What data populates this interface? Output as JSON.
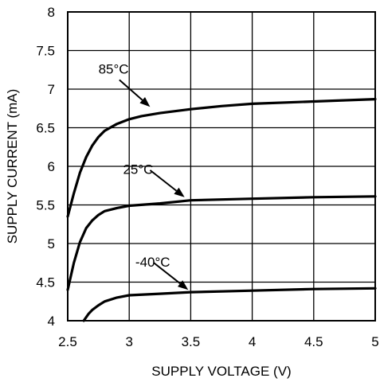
{
  "chart_data": {
    "type": "line",
    "title": "",
    "xlabel": "SUPPLY VOLTAGE (V)",
    "ylabel": "SUPPLY CURRENT (mA)",
    "xlim": [
      2.5,
      5
    ],
    "ylim": [
      4,
      8
    ],
    "xticks": [
      2.5,
      3,
      3.5,
      4,
      4.5,
      5
    ],
    "yticks": [
      4,
      4.5,
      5,
      5.5,
      6,
      6.5,
      7,
      7.5,
      8
    ],
    "xtick_labels": [
      "2.5",
      "3",
      "3.5",
      "4",
      "4.5",
      "5"
    ],
    "ytick_labels": [
      "4",
      "4.5",
      "5",
      "5.5",
      "6",
      "6.5",
      "7",
      "7.5",
      "8"
    ],
    "grid": true,
    "series": [
      {
        "name": "85°C",
        "x": [
          2.5,
          2.55,
          2.6,
          2.65,
          2.7,
          2.75,
          2.8,
          2.9,
          3.0,
          3.1,
          3.25,
          3.5,
          3.75,
          4.0,
          4.5,
          5.0
        ],
        "y": [
          5.35,
          5.65,
          5.92,
          6.12,
          6.27,
          6.38,
          6.46,
          6.55,
          6.61,
          6.65,
          6.69,
          6.74,
          6.78,
          6.81,
          6.84,
          6.87
        ]
      },
      {
        "name": "25°C",
        "x": [
          2.5,
          2.55,
          2.6,
          2.65,
          2.7,
          2.75,
          2.8,
          2.9,
          3.0,
          3.25,
          3.5,
          4.0,
          4.5,
          5.0
        ],
        "y": [
          4.4,
          4.75,
          5.02,
          5.2,
          5.3,
          5.37,
          5.42,
          5.46,
          5.49,
          5.52,
          5.56,
          5.58,
          5.6,
          5.61
        ]
      },
      {
        "name": "-40°C",
        "x": [
          2.63,
          2.67,
          2.7,
          2.75,
          2.8,
          2.9,
          3.0,
          3.25,
          3.5,
          4.0,
          4.5,
          5.0
        ],
        "y": [
          4.0,
          4.09,
          4.14,
          4.2,
          4.25,
          4.3,
          4.33,
          4.35,
          4.37,
          4.39,
          4.41,
          4.42
        ]
      }
    ],
    "annotations": [
      {
        "text": "85°C",
        "label_x": 2.75,
        "label_y": 7.2,
        "arrow_from": [
          2.92,
          7.12
        ],
        "arrow_to": [
          3.17,
          6.77
        ]
      },
      {
        "text": "25°C",
        "label_x": 2.95,
        "label_y": 5.9,
        "arrow_from": [
          3.17,
          5.95
        ],
        "arrow_to": [
          3.45,
          5.6
        ]
      },
      {
        "text": "-40°C",
        "label_x": 3.05,
        "label_y": 4.7,
        "arrow_from": [
          3.2,
          4.75
        ],
        "arrow_to": [
          3.48,
          4.4
        ]
      }
    ]
  }
}
